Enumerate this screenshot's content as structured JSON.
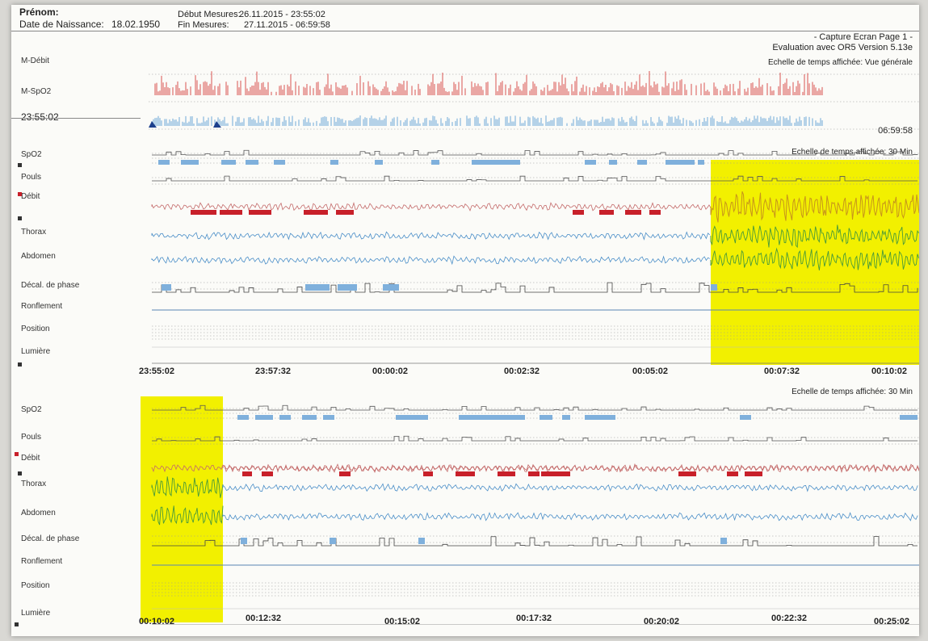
{
  "header": {
    "name_label": "Prénom:",
    "dob_label": "Date de Naissance:",
    "dob_value": "18.02.1950",
    "start_label": "Début Mesures:",
    "start_value": "26.11.2015 - 23:55:02",
    "end_label": "Fin Mesures:",
    "end_value": "27.11.2015 - 06:59:58",
    "capture": "- Capture Ecran Page 1 -",
    "software": "Evaluation avec OR5 Version 5.13e"
  },
  "overview": {
    "scale": "Echelle de temps affichée: Vue générale",
    "label_debit": "M-Débit",
    "label_spo2": "M-SpO2",
    "start_time": "23:55:02",
    "end_time": "06:59:58"
  },
  "panel1": {
    "scale": "Echelle de temps affichée: 30 Min",
    "ticks": [
      "23:55:02",
      "23:57:32",
      "00:00:02",
      "00:02:32",
      "00:05:02",
      "00:07:32",
      "00:10:02"
    ]
  },
  "panel2": {
    "scale": "Echelle de temps affichée: 30 Min",
    "ticks": [
      "00:10:02",
      "00:12:32",
      "00:15:02",
      "00:17:32",
      "00:20:02",
      "00:22:32",
      "00:25:02"
    ]
  },
  "channels": [
    "SpO2",
    "Pouls",
    "Débit",
    "Thorax",
    "Abdomen",
    "Décal. de phase",
    "Ronflement",
    "Position",
    "Lumière"
  ],
  "colors": {
    "highlight": "#f2f000",
    "spo2_event": "#7fb0dc",
    "flow_event": "#c8202a",
    "flow_trace": "#c46a6a",
    "resp_trace": "#4a8ec8",
    "hl_trace": "#c7941c"
  },
  "chart_data": [
    {
      "type": "line",
      "title": "Vue générale",
      "series": [
        {
          "name": "M-Débit"
        },
        {
          "name": "M-SpO2"
        }
      ],
      "x_range": [
        "23:55:02",
        "06:59:58"
      ]
    },
    {
      "type": "line",
      "title": "30 Min",
      "x_ticks": [
        "23:55:02",
        "23:57:32",
        "00:00:02",
        "00:02:32",
        "00:05:02",
        "00:07:32",
        "00:10:02"
      ],
      "series": [
        {
          "name": "SpO2"
        },
        {
          "name": "Pouls"
        },
        {
          "name": "Débit"
        },
        {
          "name": "Thorax"
        },
        {
          "name": "Abdomen"
        },
        {
          "name": "Décal. de phase"
        },
        {
          "name": "Ronflement"
        },
        {
          "name": "Position"
        },
        {
          "name": "Lumière"
        }
      ],
      "highlight_range": [
        "00:06:30",
        "00:10:02"
      ]
    },
    {
      "type": "line",
      "title": "30 Min",
      "x_ticks": [
        "00:10:02",
        "00:12:32",
        "00:15:02",
        "00:17:32",
        "00:20:02",
        "00:22:32",
        "00:25:02"
      ],
      "series": [
        {
          "name": "SpO2"
        },
        {
          "name": "Pouls"
        },
        {
          "name": "Débit"
        },
        {
          "name": "Thorax"
        },
        {
          "name": "Abdomen"
        },
        {
          "name": "Décal. de phase"
        },
        {
          "name": "Ronflement"
        },
        {
          "name": "Position"
        },
        {
          "name": "Lumière"
        }
      ],
      "highlight_range": [
        "00:10:02",
        "00:11:20"
      ]
    }
  ]
}
